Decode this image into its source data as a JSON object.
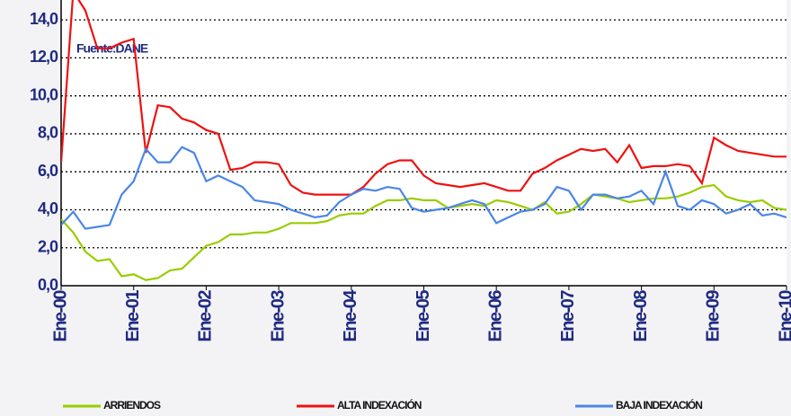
{
  "chart_data": {
    "type": "line",
    "annotation": "Fuente:DANE",
    "categories": [
      "Ene-00",
      null,
      null,
      null,
      null,
      null,
      "Ene-01",
      null,
      null,
      null,
      null,
      null,
      "Ene-02",
      null,
      null,
      null,
      null,
      null,
      "Ene-03",
      null,
      null,
      null,
      null,
      null,
      "Ene-04",
      null,
      null,
      null,
      null,
      null,
      "Ene-05",
      null,
      null,
      null,
      null,
      null,
      "Ene-06",
      null,
      null,
      null,
      null,
      null,
      "Ene-07",
      null,
      null,
      null,
      null,
      null,
      "Ene-08",
      null,
      null,
      null,
      null,
      null,
      "Ene-09",
      null,
      null,
      null,
      null,
      null,
      "Ene-10"
    ],
    "series": [
      {
        "name": "ARRIENDOS",
        "color": "#99cc00",
        "values": [
          3.5,
          2.8,
          1.8,
          1.3,
          1.4,
          0.5,
          0.6,
          0.3,
          0.4,
          0.8,
          0.9,
          1.5,
          2.1,
          2.3,
          2.7,
          2.7,
          2.8,
          2.8,
          3.0,
          3.3,
          3.3,
          3.3,
          3.4,
          3.7,
          3.8,
          3.8,
          4.2,
          4.5,
          4.5,
          4.6,
          4.5,
          4.5,
          4.1,
          4.2,
          4.3,
          4.2,
          4.5,
          4.4,
          4.2,
          4.0,
          4.4,
          3.8,
          3.9,
          4.3,
          4.8,
          4.7,
          4.6,
          4.4,
          4.5,
          4.6,
          4.6,
          4.7,
          4.9,
          5.2,
          5.3,
          4.7,
          4.5,
          4.4,
          4.5,
          4.1,
          4.0
        ]
      },
      {
        "name": "ALTA INDEXACIÓN",
        "color": "#ee1111",
        "values": [
          6.5,
          15.5,
          14.5,
          12.5,
          12.5,
          12.8,
          13.0,
          7.0,
          9.5,
          9.4,
          8.8,
          8.6,
          8.2,
          8.0,
          6.1,
          6.2,
          6.5,
          6.5,
          6.4,
          5.3,
          4.9,
          4.8,
          4.8,
          4.8,
          4.8,
          5.2,
          5.9,
          6.4,
          6.6,
          6.6,
          5.8,
          5.4,
          5.3,
          5.2,
          5.3,
          5.4,
          5.2,
          5.0,
          5.0,
          5.9,
          6.2,
          6.6,
          6.9,
          7.2,
          7.1,
          7.2,
          6.5,
          7.4,
          6.2,
          6.3,
          6.3,
          6.4,
          6.3,
          5.4,
          7.8,
          7.4,
          7.1,
          7.0,
          6.9,
          6.8,
          6.8
        ]
      },
      {
        "name": "BAJA INDEXACIÓN",
        "color": "#4a86e8",
        "values": [
          3.2,
          3.9,
          3.0,
          3.1,
          3.2,
          4.8,
          5.5,
          7.2,
          6.5,
          6.5,
          7.3,
          7.0,
          5.5,
          5.8,
          5.5,
          5.2,
          4.5,
          4.4,
          4.3,
          4.0,
          3.8,
          3.6,
          3.7,
          4.4,
          4.8,
          5.1,
          5.0,
          5.2,
          5.1,
          4.1,
          3.9,
          4.0,
          4.1,
          4.3,
          4.5,
          4.3,
          3.3,
          3.6,
          3.9,
          4.0,
          4.3,
          5.2,
          5.0,
          4.0,
          4.8,
          4.8,
          4.6,
          4.7,
          5.0,
          4.3,
          6.0,
          4.2,
          4.0,
          4.5,
          4.3,
          3.8,
          4.0,
          4.3,
          3.7,
          3.8,
          3.6
        ]
      }
    ],
    "ylim": [
      0,
      15
    ],
    "yticks": [
      {
        "value": 0,
        "label": "0,0"
      },
      {
        "value": 2,
        "label": "2,0"
      },
      {
        "value": 4,
        "label": "4,0"
      },
      {
        "value": 6,
        "label": "6,0"
      },
      {
        "value": 8,
        "label": "8,0"
      },
      {
        "value": 10,
        "label": "10,0"
      },
      {
        "value": 12,
        "label": "12,0"
      },
      {
        "value": 14,
        "label": "14,0"
      }
    ],
    "grid": true
  }
}
